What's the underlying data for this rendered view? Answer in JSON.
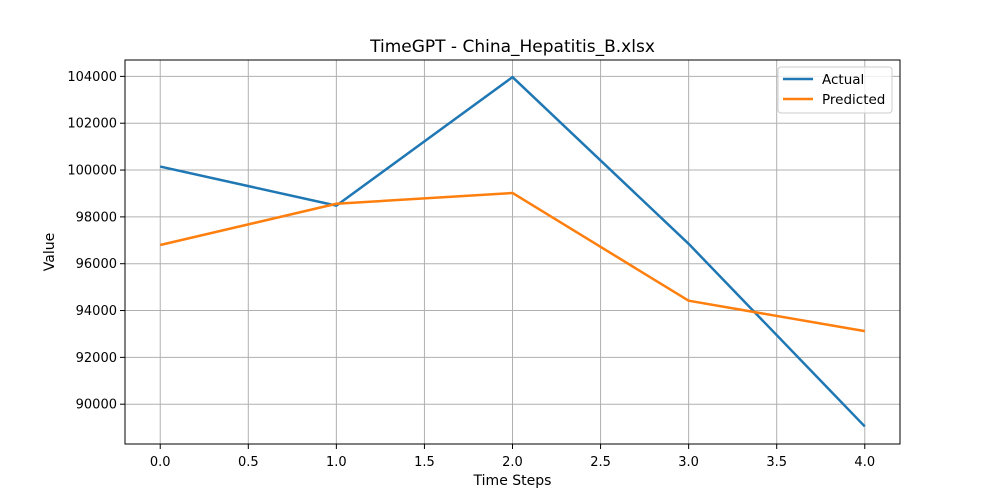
{
  "chart_data": {
    "type": "line",
    "title": "TimeGPT - China_Hepatitis_B.xlsx",
    "xlabel": "Time Steps",
    "ylabel": "Value",
    "x": [
      0,
      1,
      2,
      3,
      4
    ],
    "xlim": [
      -0.2,
      4.2
    ],
    "ylim": [
      88300,
      104700
    ],
    "xticks": [
      0.0,
      0.5,
      1.0,
      1.5,
      2.0,
      2.5,
      3.0,
      3.5,
      4.0
    ],
    "xtick_labels": [
      "0.0",
      "0.5",
      "1.0",
      "1.5",
      "2.0",
      "2.5",
      "3.0",
      "3.5",
      "4.0"
    ],
    "yticks": [
      90000,
      92000,
      94000,
      96000,
      98000,
      100000,
      102000,
      104000
    ],
    "ytick_labels": [
      "90000",
      "92000",
      "94000",
      "96000",
      "98000",
      "100000",
      "102000",
      "104000"
    ],
    "grid": true,
    "legend_position": "top-right",
    "series": [
      {
        "name": "Actual",
        "color": "#1f77b4",
        "values": [
          100150,
          98480,
          103970,
          96850,
          89050
        ]
      },
      {
        "name": "Predicted",
        "color": "#ff7f0e",
        "values": [
          96800,
          98560,
          99020,
          94420,
          93120
        ]
      }
    ]
  }
}
